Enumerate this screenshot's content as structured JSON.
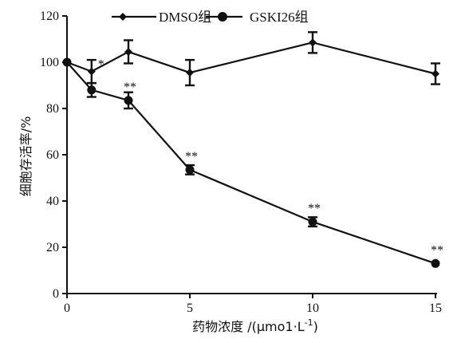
{
  "chart_data": {
    "type": "line",
    "title": "",
    "xlabel": "药物浓度 /(μmo1·L-1)",
    "xlabel_main": "药物浓度 /(μmo1·L",
    "xlabel_sup": "-1",
    "xlabel_tail": ")",
    "ylabel": "细胞存活率/%",
    "xlim": [
      0,
      15
    ],
    "ylim": [
      0,
      120
    ],
    "x_ticks": [
      "0",
      "5",
      "10",
      "15"
    ],
    "x_tick_values": [
      0,
      5,
      10,
      15
    ],
    "y_ticks": [
      "0",
      "20",
      "40",
      "60",
      "80",
      "100",
      "120"
    ],
    "y_tick_values": [
      0,
      20,
      40,
      60,
      80,
      100,
      120
    ],
    "grid": false,
    "legend_position": "top",
    "series": [
      {
        "name": "DMSO组",
        "marker": "diamond",
        "x": [
          0,
          1,
          2.5,
          5,
          10,
          15
        ],
        "y": [
          100,
          96,
          104.5,
          95.5,
          108.5,
          95
        ],
        "err": [
          0,
          5,
          5,
          5.5,
          4.5,
          4.5
        ]
      },
      {
        "name": "GSKI26组",
        "marker": "circle",
        "x": [
          0,
          1,
          2.5,
          5,
          10,
          15
        ],
        "y": [
          100,
          88,
          83.5,
          53.5,
          31,
          13
        ],
        "err": [
          0,
          3,
          3.5,
          2,
          2,
          0
        ]
      }
    ],
    "annotations": [
      {
        "text": "*",
        "x": 1,
        "y": 96
      },
      {
        "text": "**",
        "x": 2.5,
        "y": 83.5
      },
      {
        "text": "**",
        "x": 5,
        "y": 53.5
      },
      {
        "text": "**",
        "x": 10,
        "y": 31
      },
      {
        "text": "**",
        "x": 15,
        "y": 13
      }
    ],
    "colors": {
      "line": "#111111",
      "annotation": "#555555"
    }
  }
}
